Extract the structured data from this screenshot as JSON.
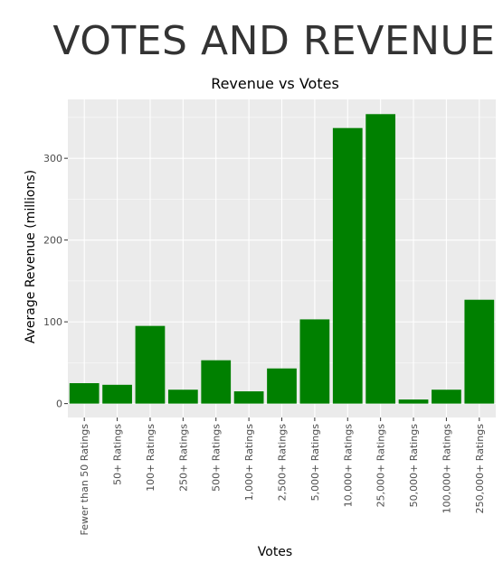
{
  "page": {
    "title": "VOTES AND REVENUE"
  },
  "chart_data": {
    "type": "bar",
    "title": "Revenue vs Votes",
    "xlabel": "Votes",
    "ylabel": "Average Revenue (millions)",
    "categories": [
      "Fewer than 50 Ratings",
      "50+ Ratings",
      "100+ Ratings",
      "250+ Ratings",
      "500+ Ratings",
      "1,000+ Ratings",
      "2,500+ Ratings",
      "5,000+ Ratings",
      "10,000+ Ratings",
      "25,000+ Ratings",
      "50,000+ Ratings",
      "100,000+ Ratings",
      "250,000+ Ratings"
    ],
    "values": [
      25,
      23,
      95,
      17,
      53,
      15,
      43,
      103,
      337,
      354,
      5,
      17,
      127
    ],
    "ylim": [
      -17,
      372
    ],
    "yticks": [
      0,
      100,
      200,
      300
    ],
    "bar_color": "#008000",
    "panel_color": "#ebebeb",
    "grid_color": "#ffffff",
    "grid": true
  }
}
